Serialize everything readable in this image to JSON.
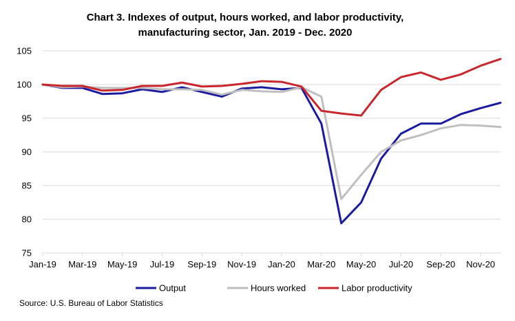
{
  "chart_data": {
    "type": "line",
    "title_lines": [
      "Chart 3. Indexes of output, hours worked, and labor productivity,",
      "manufacturing sector, Jan. 2019 - Dec. 2020"
    ],
    "xlabel": "",
    "ylabel": "",
    "ylim": [
      75,
      105
    ],
    "yticks": [
      75,
      80,
      85,
      90,
      95,
      100,
      105
    ],
    "x": [
      "Jan-19",
      "Feb-19",
      "Mar-19",
      "Apr-19",
      "May-19",
      "Jun-19",
      "Jul-19",
      "Aug-19",
      "Sep-19",
      "Oct-19",
      "Nov-19",
      "Dec-19",
      "Jan-20",
      "Feb-20",
      "Mar-20",
      "Apr-20",
      "May-20",
      "Jun-20",
      "Jul-20",
      "Aug-20",
      "Sep-20",
      "Oct-20",
      "Nov-20",
      "Dec-20"
    ],
    "xtick_labels": [
      "Jan-19",
      "Mar-19",
      "May-19",
      "Jul-19",
      "Sep-19",
      "Nov-19",
      "Jan-20",
      "Mar-20",
      "May-20",
      "Jul-20",
      "Sep-20",
      "Nov-20"
    ],
    "grid": "horizontal",
    "legend_position": "bottom",
    "series": [
      {
        "name": "Output",
        "color": "#1a1aa0",
        "values": [
          100.0,
          99.5,
          99.5,
          98.6,
          98.7,
          99.3,
          98.9,
          99.6,
          98.9,
          98.2,
          99.4,
          99.6,
          99.3,
          99.5,
          94.2,
          79.4,
          82.5,
          89.0,
          92.7,
          94.2,
          94.2,
          95.6,
          96.5,
          97.3
        ]
      },
      {
        "name": "Hours worked",
        "color": "#bfbfbf",
        "values": [
          100.0,
          99.6,
          99.7,
          99.5,
          99.5,
          99.5,
          99.3,
          99.3,
          99.2,
          98.5,
          99.2,
          99.0,
          98.9,
          99.6,
          98.2,
          83.0,
          86.6,
          90.0,
          91.7,
          92.5,
          93.5,
          94.0,
          93.9,
          93.7
        ]
      },
      {
        "name": "Labor productivity",
        "color": "#c8262c",
        "values": [
          100.0,
          99.8,
          99.8,
          99.1,
          99.2,
          99.8,
          99.8,
          100.3,
          99.7,
          99.8,
          100.1,
          100.5,
          100.4,
          99.7,
          96.1,
          95.7,
          95.4,
          99.2,
          101.1,
          101.8,
          100.7,
          101.5,
          102.8,
          103.8
        ]
      }
    ],
    "source": "Source: U.S. Bureau of Labor Statistics"
  }
}
